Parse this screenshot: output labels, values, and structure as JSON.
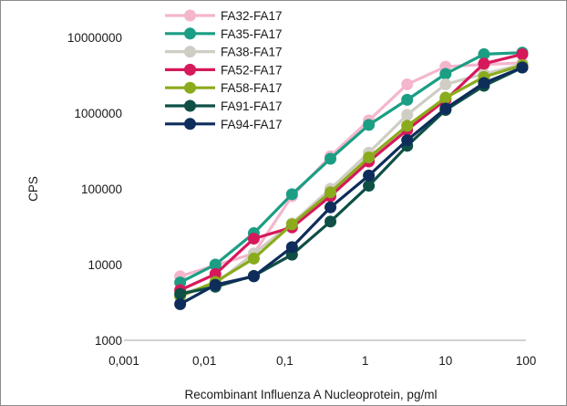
{
  "chart_data": {
    "type": "line",
    "title": "",
    "xlabel": "Recombinant Influenza A Nucleoprotein, pg/ml",
    "ylabel": "CPS",
    "xscale": "log",
    "yscale": "log",
    "xlim": [
      0.001,
      100
    ],
    "ylim": [
      1000,
      10000000
    ],
    "x_ticks": [
      "0,001",
      "0,01",
      "0,1",
      "1",
      "10",
      "100"
    ],
    "y_ticks": [
      "1000",
      "10000",
      "100000",
      "1000000",
      "10000000"
    ],
    "grid": "none",
    "legend_position": "top-left",
    "x": [
      0.005,
      0.0137,
      0.0412,
      0.123,
      0.37,
      1.11,
      3.33,
      10,
      30,
      90
    ],
    "series": [
      {
        "name": "FA32-FA17",
        "color": "#f4b6cd",
        "values": [
          7000,
          9800,
          14000,
          80000,
          270000,
          800000,
          2400000,
          4100000,
          4400000,
          4600000
        ]
      },
      {
        "name": "FA35-FA17",
        "color": "#1b9e84",
        "values": [
          5800,
          10000,
          26000,
          85000,
          250000,
          700000,
          1500000,
          3300000,
          6000000,
          6300000
        ]
      },
      {
        "name": "FA38-FA17",
        "color": "#cfcdc4",
        "values": [
          4100,
          5600,
          14000,
          35000,
          100000,
          300000,
          950000,
          2400000,
          3300000,
          4400000
        ]
      },
      {
        "name": "FA52-FA17",
        "color": "#d6195b",
        "values": [
          4600,
          7500,
          22000,
          31000,
          80000,
          230000,
          600000,
          1500000,
          4500000,
          6000000
        ]
      },
      {
        "name": "FA58-FA17",
        "color": "#8aab1c",
        "values": [
          3800,
          5900,
          12000,
          34000,
          90000,
          260000,
          680000,
          1600000,
          3000000,
          4300000
        ]
      },
      {
        "name": "FA91-FA17",
        "color": "#0f4f46",
        "values": [
          4100,
          5100,
          7100,
          13500,
          37000,
          110000,
          370000,
          1100000,
          2300000,
          4000000
        ]
      },
      {
        "name": "FA94-FA17",
        "color": "#0e2d5a",
        "values": [
          3000,
          5400,
          7000,
          17000,
          57000,
          150000,
          440000,
          1150000,
          2500000,
          4000000
        ]
      }
    ]
  }
}
